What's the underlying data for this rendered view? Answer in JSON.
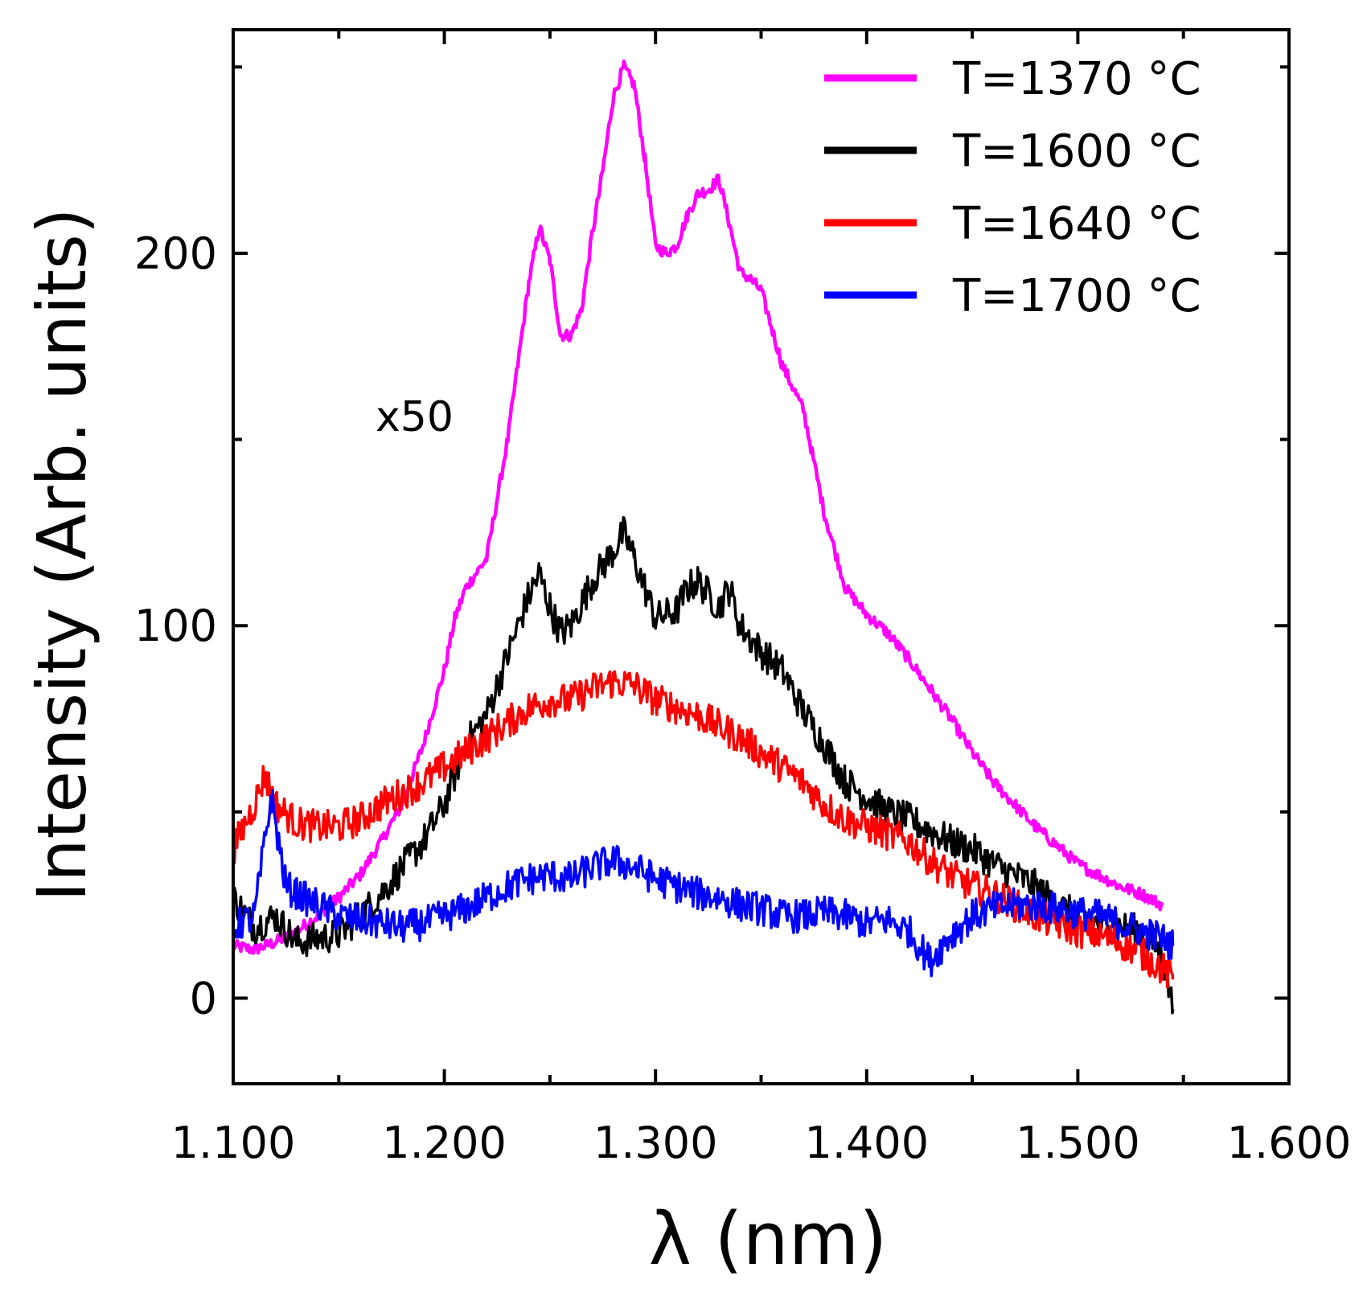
{
  "chart_data": {
    "type": "line",
    "title": "",
    "xlabel": "λ (nm)",
    "ylabel": "Intensity (Arb. units)",
    "xlim": [
      1.1,
      1.6
    ],
    "ylim": [
      -23,
      260
    ],
    "x_ticks": [
      1.1,
      1.2,
      1.3,
      1.4,
      1.5,
      1.6
    ],
    "x_tick_labels": [
      "1.100",
      "1.200",
      "1.300",
      "1.400",
      "1.500",
      "1.600"
    ],
    "y_ticks": [
      0,
      100,
      200
    ],
    "y_tick_labels": [
      "0",
      "100",
      "200"
    ],
    "y_minor_ticks": [
      50,
      150,
      250
    ],
    "x_minor_ticks": [
      1.15,
      1.25,
      1.35,
      1.45,
      1.55
    ],
    "grid": false,
    "legend_position": "top-right",
    "annotation": "x50",
    "series": [
      {
        "name": "T=1370 °C",
        "color": "#ff00ff",
        "points": [
          [
            1.1,
            14
          ],
          [
            1.11,
            13
          ],
          [
            1.12,
            15
          ],
          [
            1.13,
            18
          ],
          [
            1.14,
            22
          ],
          [
            1.15,
            27
          ],
          [
            1.16,
            33
          ],
          [
            1.17,
            42
          ],
          [
            1.18,
            52
          ],
          [
            1.19,
            68
          ],
          [
            1.2,
            88
          ],
          [
            1.205,
            102
          ],
          [
            1.21,
            110
          ],
          [
            1.22,
            118
          ],
          [
            1.23,
            150
          ],
          [
            1.24,
            192
          ],
          [
            1.245,
            207
          ],
          [
            1.25,
            198
          ],
          [
            1.255,
            178
          ],
          [
            1.26,
            178
          ],
          [
            1.265,
            185
          ],
          [
            1.27,
            205
          ],
          [
            1.275,
            222
          ],
          [
            1.28,
            242
          ],
          [
            1.285,
            250
          ],
          [
            1.29,
            245
          ],
          [
            1.295,
            225
          ],
          [
            1.3,
            202
          ],
          [
            1.305,
            200
          ],
          [
            1.31,
            202
          ],
          [
            1.315,
            210
          ],
          [
            1.32,
            216
          ],
          [
            1.325,
            217
          ],
          [
            1.33,
            220
          ],
          [
            1.335,
            208
          ],
          [
            1.34,
            195
          ],
          [
            1.345,
            193
          ],
          [
            1.35,
            190
          ],
          [
            1.36,
            170
          ],
          [
            1.37,
            158
          ],
          [
            1.38,
            130
          ],
          [
            1.39,
            110
          ],
          [
            1.4,
            103
          ],
          [
            1.41,
            98
          ],
          [
            1.42,
            91
          ],
          [
            1.43,
            83
          ],
          [
            1.44,
            75
          ],
          [
            1.45,
            66
          ],
          [
            1.46,
            58
          ],
          [
            1.47,
            52
          ],
          [
            1.48,
            46
          ],
          [
            1.49,
            41
          ],
          [
            1.5,
            36
          ],
          [
            1.51,
            33
          ],
          [
            1.52,
            30
          ],
          [
            1.53,
            28
          ],
          [
            1.54,
            25
          ]
        ]
      },
      {
        "name": "T=1600 °C",
        "color": "#000000",
        "points": [
          [
            1.1,
            27
          ],
          [
            1.11,
            19
          ],
          [
            1.12,
            22
          ],
          [
            1.13,
            15
          ],
          [
            1.14,
            16
          ],
          [
            1.15,
            17
          ],
          [
            1.16,
            22
          ],
          [
            1.17,
            28
          ],
          [
            1.18,
            35
          ],
          [
            1.19,
            42
          ],
          [
            1.2,
            52
          ],
          [
            1.21,
            68
          ],
          [
            1.22,
            76
          ],
          [
            1.23,
            92
          ],
          [
            1.24,
            108
          ],
          [
            1.245,
            114
          ],
          [
            1.25,
            105
          ],
          [
            1.255,
            98
          ],
          [
            1.26,
            100
          ],
          [
            1.27,
            112
          ],
          [
            1.28,
            120
          ],
          [
            1.285,
            125
          ],
          [
            1.29,
            118
          ],
          [
            1.3,
            102
          ],
          [
            1.31,
            104
          ],
          [
            1.315,
            110
          ],
          [
            1.32,
            112
          ],
          [
            1.33,
            105
          ],
          [
            1.335,
            110
          ],
          [
            1.34,
            100
          ],
          [
            1.35,
            93
          ],
          [
            1.36,
            88
          ],
          [
            1.37,
            77
          ],
          [
            1.38,
            68
          ],
          [
            1.39,
            58
          ],
          [
            1.4,
            54
          ],
          [
            1.41,
            50
          ],
          [
            1.42,
            48
          ],
          [
            1.43,
            45
          ],
          [
            1.44,
            42
          ],
          [
            1.45,
            40
          ],
          [
            1.46,
            36
          ],
          [
            1.47,
            33
          ],
          [
            1.48,
            30
          ],
          [
            1.49,
            25
          ],
          [
            1.5,
            22
          ],
          [
            1.51,
            20
          ],
          [
            1.52,
            19
          ],
          [
            1.53,
            18
          ],
          [
            1.54,
            12
          ],
          [
            1.545,
            -3
          ]
        ]
      },
      {
        "name": "T=1640 °C",
        "color": "#ff0000",
        "points": [
          [
            1.1,
            40
          ],
          [
            1.11,
            52
          ],
          [
            1.115,
            60
          ],
          [
            1.12,
            52
          ],
          [
            1.13,
            47
          ],
          [
            1.14,
            46
          ],
          [
            1.15,
            46
          ],
          [
            1.16,
            48
          ],
          [
            1.17,
            52
          ],
          [
            1.18,
            55
          ],
          [
            1.19,
            58
          ],
          [
            1.2,
            62
          ],
          [
            1.21,
            66
          ],
          [
            1.22,
            70
          ],
          [
            1.23,
            74
          ],
          [
            1.24,
            78
          ],
          [
            1.25,
            80
          ],
          [
            1.26,
            80
          ],
          [
            1.27,
            83
          ],
          [
            1.28,
            85
          ],
          [
            1.29,
            84
          ],
          [
            1.3,
            80
          ],
          [
            1.31,
            78
          ],
          [
            1.32,
            76
          ],
          [
            1.33,
            73
          ],
          [
            1.34,
            70
          ],
          [
            1.35,
            66
          ],
          [
            1.36,
            62
          ],
          [
            1.37,
            58
          ],
          [
            1.38,
            52
          ],
          [
            1.39,
            48
          ],
          [
            1.4,
            46
          ],
          [
            1.41,
            44
          ],
          [
            1.42,
            42
          ],
          [
            1.43,
            37
          ],
          [
            1.44,
            33
          ],
          [
            1.45,
            30
          ],
          [
            1.46,
            28
          ],
          [
            1.47,
            25
          ],
          [
            1.48,
            22
          ],
          [
            1.49,
            20
          ],
          [
            1.5,
            18
          ],
          [
            1.51,
            17
          ],
          [
            1.52,
            15
          ],
          [
            1.53,
            12
          ],
          [
            1.54,
            8
          ],
          [
            1.545,
            5
          ]
        ]
      },
      {
        "name": "T=1700 °C",
        "color": "#0000ff",
        "points": [
          [
            1.1,
            19
          ],
          [
            1.11,
            22
          ],
          [
            1.118,
            54
          ],
          [
            1.125,
            30
          ],
          [
            1.13,
            28
          ],
          [
            1.14,
            25
          ],
          [
            1.15,
            22
          ],
          [
            1.16,
            21
          ],
          [
            1.17,
            20
          ],
          [
            1.18,
            19
          ],
          [
            1.19,
            20
          ],
          [
            1.2,
            22
          ],
          [
            1.21,
            24
          ],
          [
            1.22,
            27
          ],
          [
            1.23,
            30
          ],
          [
            1.24,
            32
          ],
          [
            1.25,
            33
          ],
          [
            1.26,
            32
          ],
          [
            1.27,
            35
          ],
          [
            1.28,
            37
          ],
          [
            1.29,
            35
          ],
          [
            1.3,
            32
          ],
          [
            1.31,
            30
          ],
          [
            1.32,
            28
          ],
          [
            1.33,
            27
          ],
          [
            1.34,
            25
          ],
          [
            1.35,
            24
          ],
          [
            1.36,
            22
          ],
          [
            1.37,
            22
          ],
          [
            1.38,
            23
          ],
          [
            1.39,
            22
          ],
          [
            1.4,
            20
          ],
          [
            1.41,
            21
          ],
          [
            1.42,
            18
          ],
          [
            1.43,
            10
          ],
          [
            1.44,
            17
          ],
          [
            1.45,
            22
          ],
          [
            1.46,
            24
          ],
          [
            1.47,
            25
          ],
          [
            1.48,
            25
          ],
          [
            1.49,
            24
          ],
          [
            1.5,
            23
          ],
          [
            1.51,
            22
          ],
          [
            1.52,
            20
          ],
          [
            1.53,
            18
          ],
          [
            1.54,
            16
          ],
          [
            1.545,
            14
          ]
        ]
      }
    ]
  }
}
